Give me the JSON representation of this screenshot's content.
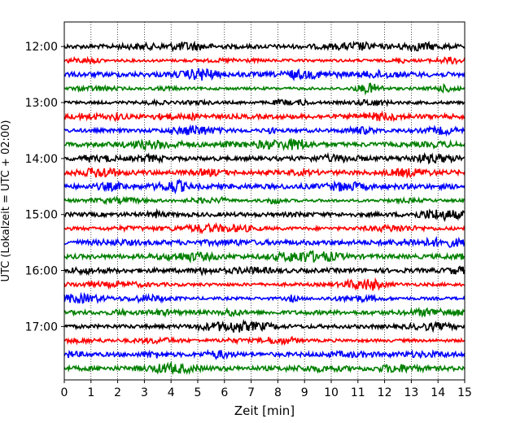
{
  "chart_data": {
    "type": "line",
    "xlabel": "Zeit  [min]",
    "ylabel": "UTC (Lokalzeit = UTC + 02:00)",
    "xlim": [
      0,
      15
    ],
    "xticks": [
      0,
      1,
      2,
      3,
      4,
      5,
      6,
      7,
      8,
      9,
      10,
      11,
      12,
      13,
      14,
      15
    ],
    "xgrid": "dotted vertical lines at each minute",
    "rows_per_hour": 4,
    "minutes_per_row": 15,
    "start_time": "11:45",
    "end_time": "17:45",
    "yticks": [
      "12:00",
      "13:00",
      "14:00",
      "15:00",
      "16:00",
      "17:00"
    ],
    "colors": [
      "#000000",
      "#ff0000",
      "#0000ff",
      "#008000"
    ],
    "traces": [
      {
        "start": "12:00",
        "color": "#000000"
      },
      {
        "start": "12:15",
        "color": "#ff0000"
      },
      {
        "start": "12:30",
        "color": "#0000ff"
      },
      {
        "start": "12:45",
        "color": "#008000"
      },
      {
        "start": "13:00",
        "color": "#000000"
      },
      {
        "start": "13:15",
        "color": "#ff0000"
      },
      {
        "start": "13:30",
        "color": "#0000ff"
      },
      {
        "start": "13:45",
        "color": "#008000"
      },
      {
        "start": "14:00",
        "color": "#000000"
      },
      {
        "start": "14:15",
        "color": "#ff0000"
      },
      {
        "start": "14:30",
        "color": "#0000ff"
      },
      {
        "start": "14:45",
        "color": "#008000"
      },
      {
        "start": "15:00",
        "color": "#000000"
      },
      {
        "start": "15:15",
        "color": "#ff0000"
      },
      {
        "start": "15:30",
        "color": "#0000ff"
      },
      {
        "start": "15:45",
        "color": "#008000"
      },
      {
        "start": "16:00",
        "color": "#000000"
      },
      {
        "start": "16:15",
        "color": "#ff0000"
      },
      {
        "start": "16:30",
        "color": "#0000ff"
      },
      {
        "start": "16:45",
        "color": "#008000"
      },
      {
        "start": "17:00",
        "color": "#000000"
      },
      {
        "start": "17:15",
        "color": "#ff0000"
      },
      {
        "start": "17:30",
        "color": "#0000ff"
      },
      {
        "start": "17:45",
        "color": "#008000"
      }
    ]
  }
}
